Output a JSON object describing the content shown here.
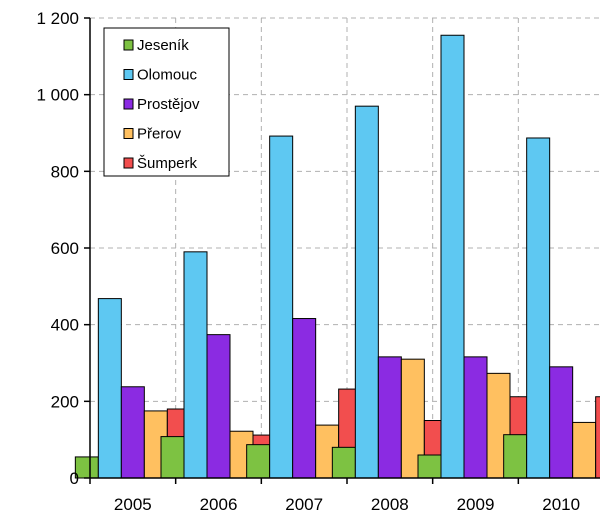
{
  "chart_data": {
    "type": "bar",
    "title": "",
    "xlabel": "",
    "ylabel": "",
    "categories": [
      "2005",
      "2006",
      "2007",
      "2008",
      "2009",
      "2010"
    ],
    "ylim": [
      0,
      1200
    ],
    "yticks": [
      0,
      200,
      400,
      600,
      800,
      1000,
      1200
    ],
    "ytick_labels": [
      "0",
      "200",
      "400",
      "600",
      "800",
      "1 000",
      "1 200"
    ],
    "grid": true,
    "legend_position": "top-left",
    "series": [
      {
        "name": "Jeseník",
        "color": "#7dc242",
        "values": [
          55,
          108,
          87,
          80,
          60,
          113
        ]
      },
      {
        "name": "Olomouc",
        "color": "#5ec8f2",
        "values": [
          468,
          590,
          892,
          970,
          1155,
          887
        ]
      },
      {
        "name": "Prostějov",
        "color": "#8b2be2",
        "values": [
          238,
          374,
          416,
          316,
          316,
          290
        ]
      },
      {
        "name": "Přerov",
        "color": "#ffc060",
        "values": [
          175,
          122,
          138,
          310,
          273,
          145
        ]
      },
      {
        "name": "Šumperk",
        "color": "#f24e4e",
        "values": [
          180,
          112,
          232,
          150,
          212,
          212
        ]
      }
    ]
  }
}
